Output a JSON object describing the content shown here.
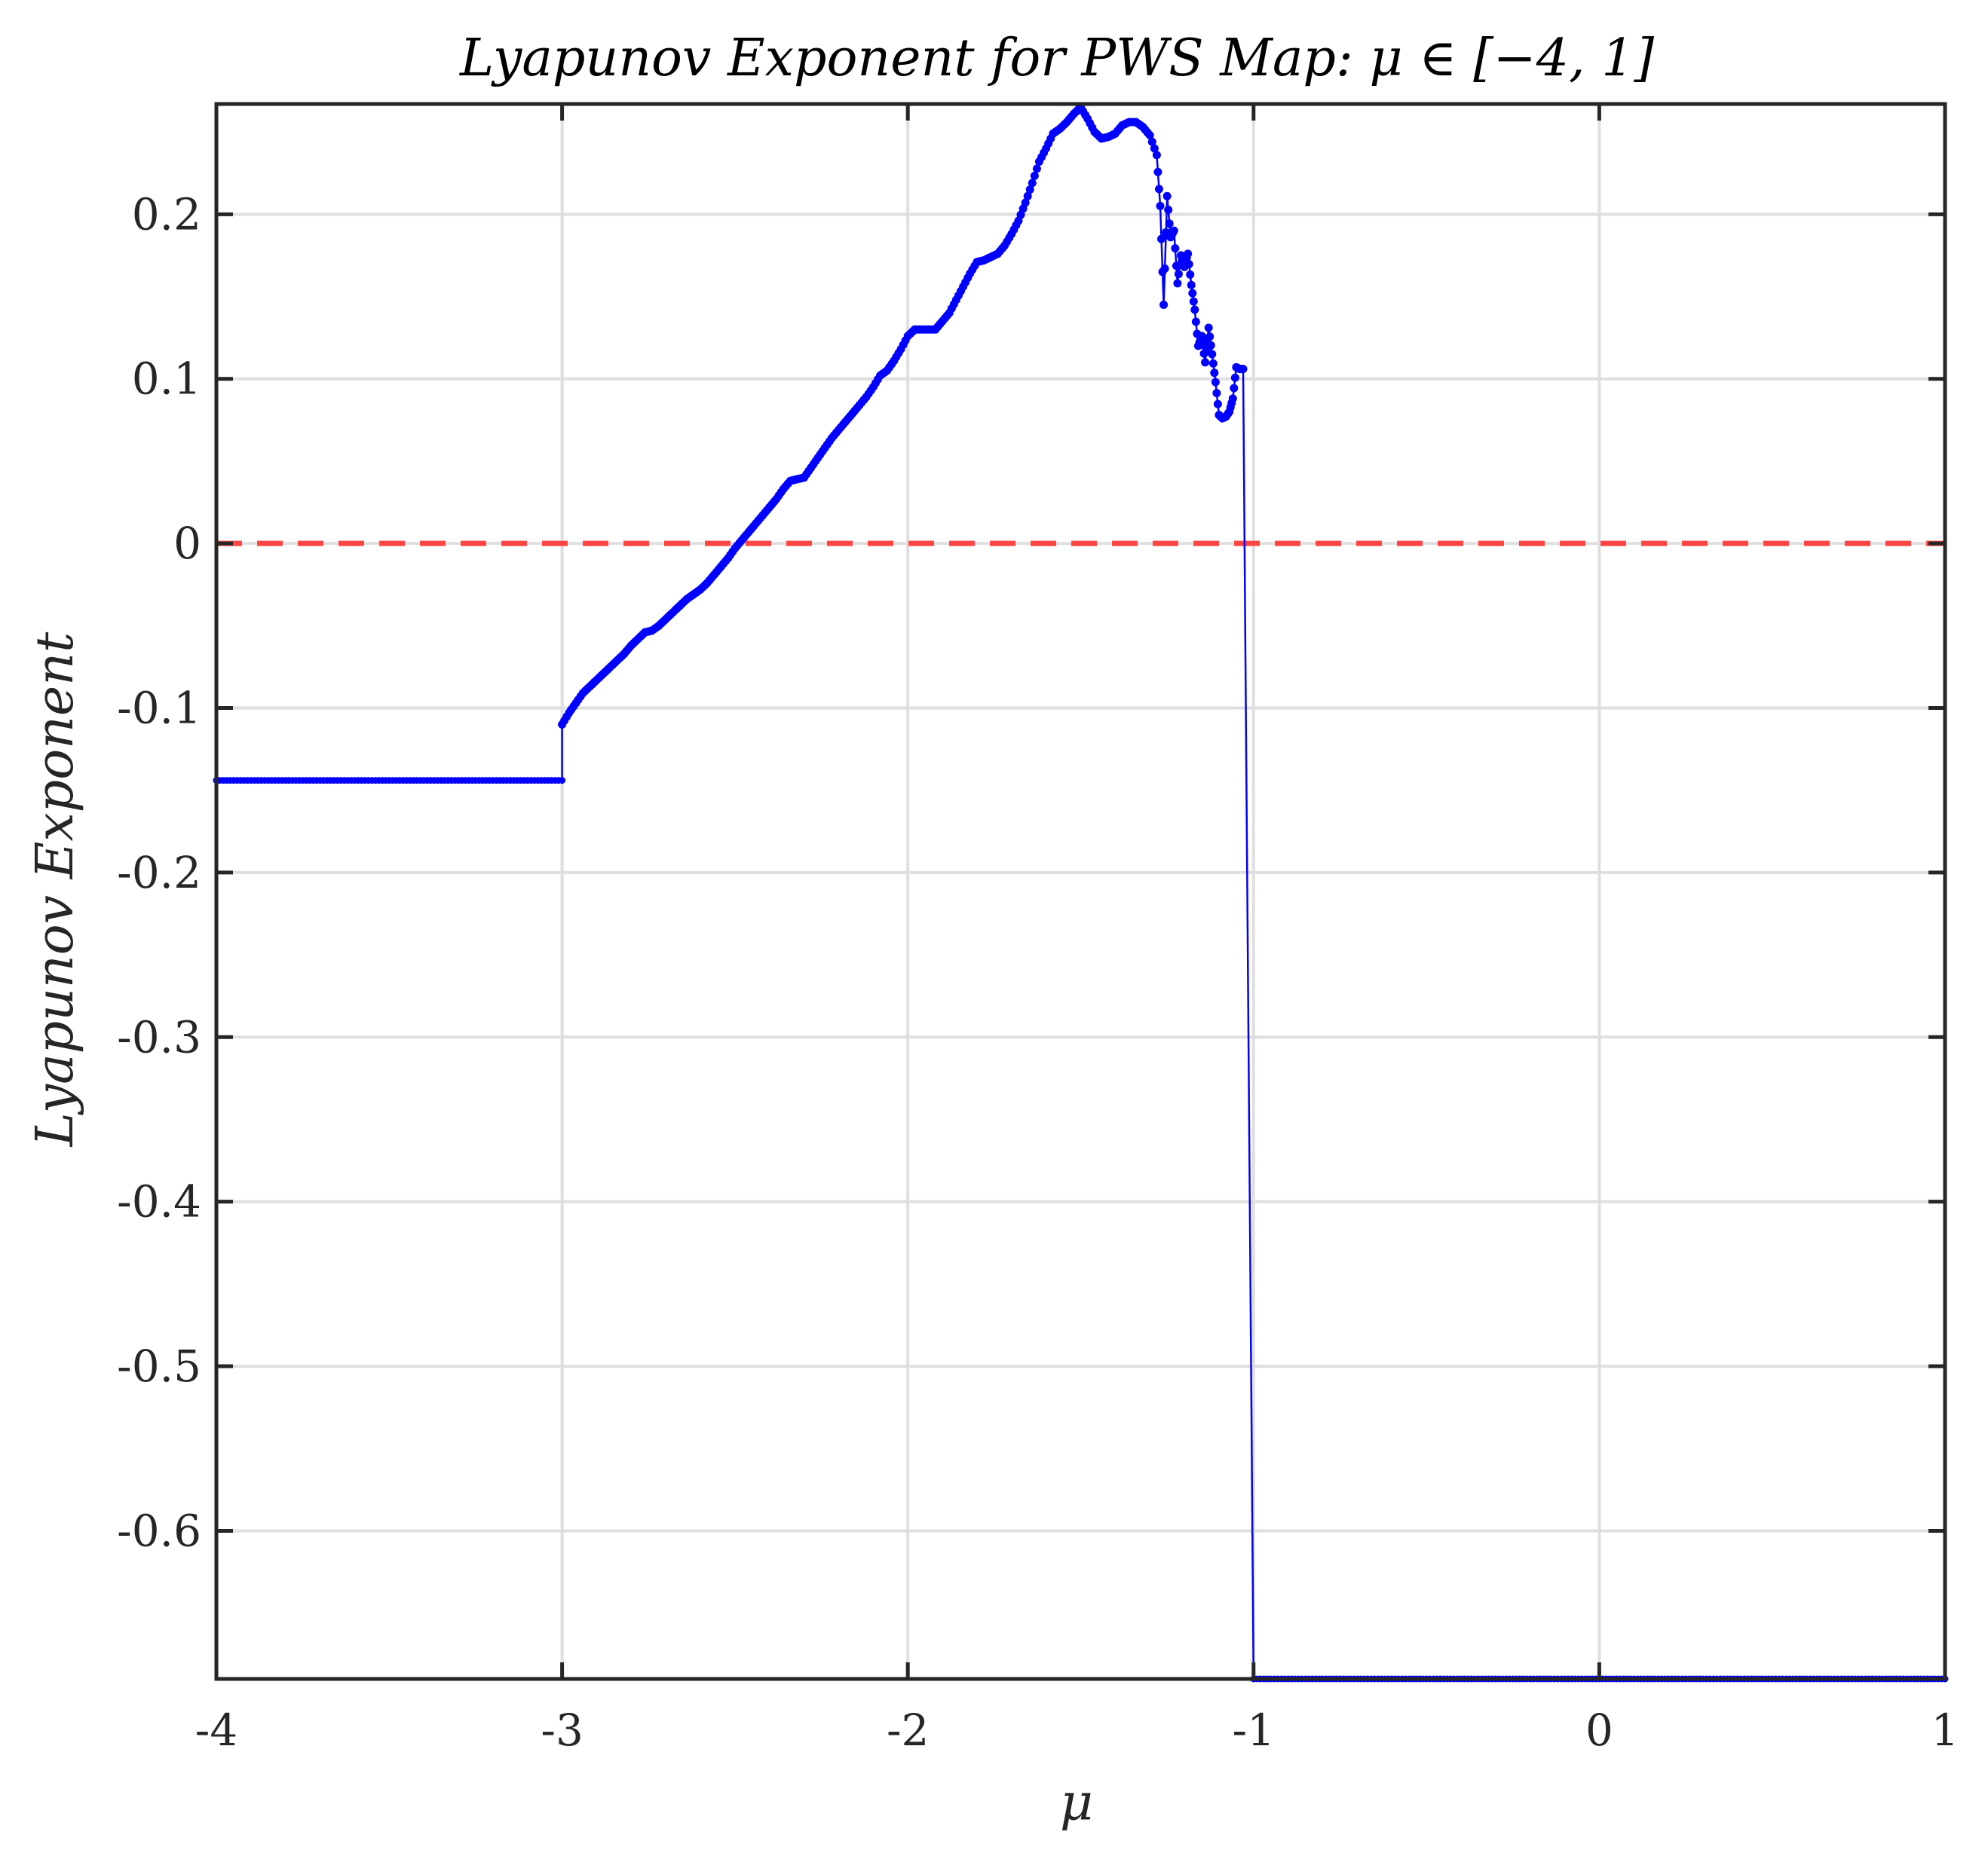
{
  "chart_data": {
    "type": "line",
    "title": "Lyapunov Exponent for PWS Map:  μ ∈ [−4, 1]",
    "xlabel": "μ",
    "ylabel": "Lyapunov Exponent",
    "xlim": [
      -4,
      1
    ],
    "ylim": [
      -0.69,
      0.267
    ],
    "xticks": [
      -4,
      -3,
      -2,
      -1,
      0,
      1
    ],
    "xtick_labels": [
      "-4",
      "-3",
      "-2",
      "-1",
      "0",
      "1"
    ],
    "yticks": [
      0.2,
      0.1,
      0,
      -0.1,
      -0.2,
      -0.3,
      -0.4,
      -0.5,
      -0.6
    ],
    "ytick_labels": [
      "0.2",
      "0.1",
      "0",
      "-0.1",
      "-0.2",
      "-0.3",
      "-0.4",
      "-0.5",
      "-0.6"
    ],
    "grid": true,
    "reference_line": {
      "y": 0,
      "color": "#ff4444",
      "style": "dashed"
    },
    "series_color": "#0000ff",
    "series": [
      {
        "points": [
          [
            -3.0,
            -0.11
          ],
          [
            -2.98,
            -0.103
          ],
          [
            -2.96,
            -0.097
          ],
          [
            -2.94,
            -0.091
          ],
          [
            -2.92,
            -0.087
          ],
          [
            -2.9,
            -0.083
          ],
          [
            -2.88,
            -0.079
          ],
          [
            -2.86,
            -0.075
          ],
          [
            -2.84,
            -0.071
          ],
          [
            -2.82,
            -0.067
          ],
          [
            -2.8,
            -0.062
          ],
          [
            -2.78,
            -0.058
          ],
          [
            -2.76,
            -0.054
          ],
          [
            -2.74,
            -0.053
          ],
          [
            -2.72,
            -0.05
          ],
          [
            -2.7,
            -0.046
          ],
          [
            -2.68,
            -0.042
          ],
          [
            -2.66,
            -0.038
          ],
          [
            -2.64,
            -0.034
          ],
          [
            -2.62,
            -0.031
          ],
          [
            -2.6,
            -0.028
          ],
          [
            -2.58,
            -0.024
          ],
          [
            -2.56,
            -0.019
          ],
          [
            -2.54,
            -0.014
          ],
          [
            -2.52,
            -0.009
          ],
          [
            -2.5,
            -0.003
          ],
          [
            -2.48,
            0.002
          ],
          [
            -2.46,
            0.007
          ],
          [
            -2.44,
            0.012
          ],
          [
            -2.42,
            0.017
          ],
          [
            -2.4,
            0.022
          ],
          [
            -2.38,
            0.027
          ],
          [
            -2.36,
            0.033
          ],
          [
            -2.34,
            0.038
          ],
          [
            -2.32,
            0.039
          ],
          [
            -2.3,
            0.04
          ],
          [
            -2.28,
            0.046
          ],
          [
            -2.26,
            0.052
          ],
          [
            -2.24,
            0.058
          ],
          [
            -2.22,
            0.064
          ],
          [
            -2.2,
            0.069
          ],
          [
            -2.18,
            0.074
          ],
          [
            -2.16,
            0.079
          ],
          [
            -2.14,
            0.084
          ],
          [
            -2.12,
            0.089
          ],
          [
            -2.1,
            0.095
          ],
          [
            -2.08,
            0.102
          ],
          [
            -2.06,
            0.105
          ],
          [
            -2.04,
            0.111
          ],
          [
            -2.02,
            0.118
          ],
          [
            -2.0,
            0.126
          ],
          [
            -1.98,
            0.13
          ],
          [
            -1.96,
            0.13
          ],
          [
            -1.94,
            0.13
          ],
          [
            -1.92,
            0.13
          ],
          [
            -1.9,
            0.135
          ],
          [
            -1.88,
            0.14
          ],
          [
            -1.86,
            0.148
          ],
          [
            -1.84,
            0.156
          ],
          [
            -1.82,
            0.164
          ],
          [
            -1.8,
            0.171
          ],
          [
            -1.78,
            0.172
          ],
          [
            -1.76,
            0.174
          ],
          [
            -1.74,
            0.176
          ],
          [
            -1.72,
            0.181
          ],
          [
            -1.7,
            0.188
          ],
          [
            -1.68,
            0.196
          ],
          [
            -1.66,
            0.207
          ],
          [
            -1.64,
            0.219
          ],
          [
            -1.62,
            0.232
          ],
          [
            -1.6,
            0.24
          ],
          [
            -1.58,
            0.249
          ],
          [
            -1.56,
            0.252
          ],
          [
            -1.54,
            0.256
          ],
          [
            -1.52,
            0.261
          ],
          [
            -1.5,
            0.265
          ],
          [
            -1.48,
            0.258
          ],
          [
            -1.46,
            0.25
          ],
          [
            -1.44,
            0.246
          ],
          [
            -1.42,
            0.247
          ],
          [
            -1.4,
            0.249
          ],
          [
            -1.38,
            0.254
          ],
          [
            -1.36,
            0.256
          ],
          [
            -1.34,
            0.256
          ],
          [
            -1.32,
            0.253
          ],
          [
            -1.3,
            0.248
          ],
          [
            -1.28,
            0.236
          ],
          [
            -1.27,
            0.205
          ],
          [
            -1.26,
            0.145
          ],
          [
            -1.25,
            0.211
          ],
          [
            -1.24,
            0.186
          ],
          [
            -1.23,
            0.19
          ],
          [
            -1.22,
            0.158
          ],
          [
            -1.21,
            0.175
          ],
          [
            -1.2,
            0.168
          ],
          [
            -1.19,
            0.176
          ],
          [
            -1.18,
            0.157
          ],
          [
            -1.17,
            0.142
          ],
          [
            -1.16,
            0.12
          ],
          [
            -1.15,
            0.126
          ],
          [
            -1.14,
            0.11
          ],
          [
            -1.13,
            0.131
          ],
          [
            -1.12,
            0.115
          ],
          [
            -1.11,
            0.098
          ],
          [
            -1.1,
            0.078
          ],
          [
            -1.09,
            0.076
          ],
          [
            -1.08,
            0.077
          ],
          [
            -1.07,
            0.08
          ],
          [
            -1.06,
            0.088
          ],
          [
            -1.05,
            0.107
          ],
          [
            -1.04,
            0.106
          ],
          [
            -1.03,
            0.106
          ],
          [
            -1.0,
            -0.69
          ]
        ]
      }
    ],
    "flat_segments": [
      {
        "x": [
          -4,
          -3
        ],
        "y": -0.144
      },
      {
        "x": [
          -1,
          1
        ],
        "y": -0.69
      }
    ]
  }
}
